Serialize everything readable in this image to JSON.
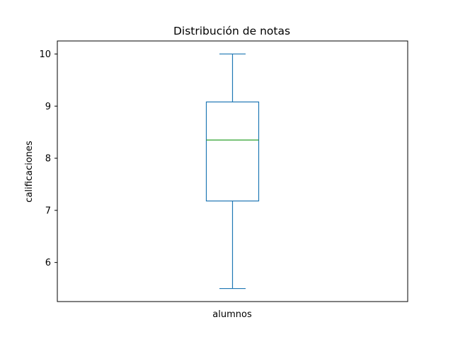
{
  "chart_data": {
    "type": "box",
    "title": "Distribución de notas",
    "xlabel": "alumnos",
    "ylabel": "calificaciones",
    "ylim": [
      5.25,
      10.25
    ],
    "yticks": [
      6,
      7,
      8,
      9,
      10
    ],
    "grid": false,
    "series": [
      {
        "whisker_low": 5.5,
        "q1": 7.18,
        "median": 8.35,
        "q3": 9.08,
        "whisker_high": 10.0
      }
    ],
    "colors": {
      "box": "#1f77b4",
      "median": "#2ca02c",
      "axes": "#000000"
    }
  }
}
